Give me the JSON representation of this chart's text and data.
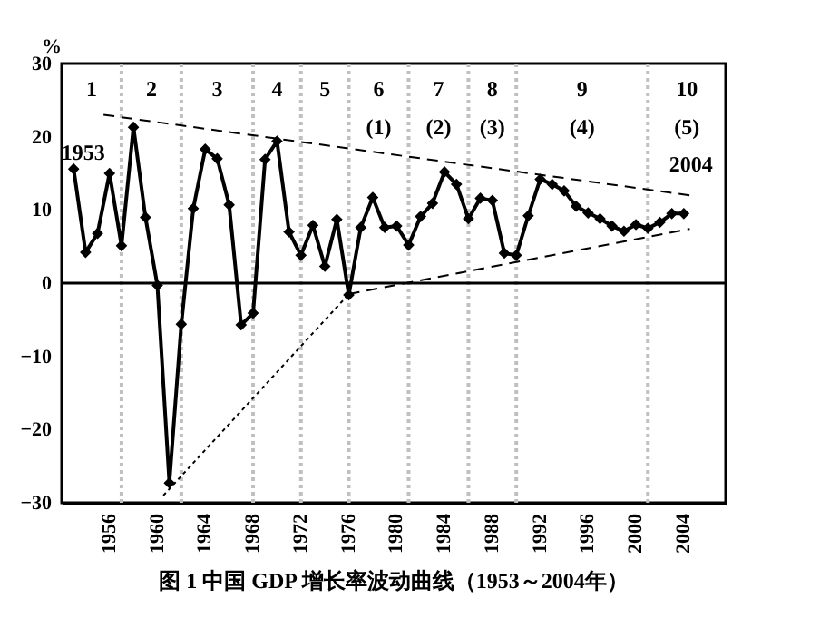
{
  "chart_data": {
    "type": "line",
    "title": "图 1   中国 GDP 增长率波动曲线（1953～2004年）",
    "ylabel": "%",
    "xlim": [
      1952,
      2007.5
    ],
    "xticks": [
      1956,
      1960,
      1964,
      1968,
      1972,
      1976,
      1980,
      1984,
      1988,
      1992,
      1996,
      2000,
      2004
    ],
    "ylim": [
      -30,
      30
    ],
    "yticks": [
      -30,
      -20,
      -10,
      0,
      10,
      20,
      30
    ],
    "grid": false,
    "series": [
      {
        "color": "#000000",
        "marker": "diamond",
        "line_style": "solid",
        "x": [
          1953,
          1954,
          1955,
          1956,
          1957,
          1958,
          1959,
          1960,
          1961,
          1962,
          1963,
          1964,
          1965,
          1966,
          1967,
          1968,
          1969,
          1970,
          1971,
          1972,
          1973,
          1974,
          1975,
          1976,
          1977,
          1978,
          1979,
          1980,
          1981,
          1982,
          1983,
          1984,
          1985,
          1986,
          1987,
          1988,
          1989,
          1990,
          1991,
          1992,
          1993,
          1994,
          1995,
          1996,
          1997,
          1998,
          1999,
          2000,
          2001,
          2002,
          2003,
          2004
        ],
        "values": [
          15.6,
          4.2,
          6.8,
          15.0,
          5.1,
          21.3,
          9.0,
          -0.3,
          -27.3,
          -5.6,
          10.2,
          18.3,
          17.0,
          10.7,
          -5.7,
          -4.1,
          16.9,
          19.4,
          7.0,
          3.8,
          7.9,
          2.3,
          8.7,
          -1.6,
          7.6,
          11.7,
          7.6,
          7.8,
          5.2,
          9.1,
          10.9,
          15.2,
          13.5,
          8.8,
          11.6,
          11.3,
          4.1,
          3.8,
          9.2,
          14.2,
          13.5,
          12.6,
          10.5,
          9.6,
          8.8,
          7.8,
          7.1,
          8.0,
          7.5,
          8.3,
          9.5,
          9.5
        ]
      },
      {
        "color": "#000000",
        "line_style": "dashed",
        "x": [
          1955.5,
          2004.5
        ],
        "values": [
          23,
          12
        ]
      },
      {
        "color": "#000000",
        "line_style": "dotted",
        "x": [
          1960.5,
          1976
        ],
        "values": [
          -29,
          -1.5
        ]
      },
      {
        "color": "#000000",
        "line_style": "dashed",
        "x": [
          1976,
          2004.5
        ],
        "values": [
          -1.5,
          7.4
        ]
      }
    ],
    "ref_lines": [
      {
        "axis": "y",
        "value": 0,
        "color": "#000000",
        "line_style": "solid"
      },
      {
        "axis": "x",
        "value": 1957,
        "color": "#c0c0c0",
        "line_style": "dotted"
      },
      {
        "axis": "x",
        "value": 1962,
        "color": "#c0c0c0",
        "line_style": "dotted"
      },
      {
        "axis": "x",
        "value": 1968,
        "color": "#c0c0c0",
        "line_style": "dotted"
      },
      {
        "axis": "x",
        "value": 1972,
        "color": "#c0c0c0",
        "line_style": "dotted"
      },
      {
        "axis": "x",
        "value": 1976,
        "color": "#c0c0c0",
        "line_style": "dotted"
      },
      {
        "axis": "x",
        "value": 1981,
        "color": "#c0c0c0",
        "line_style": "dotted"
      },
      {
        "axis": "x",
        "value": 1986,
        "color": "#c0c0c0",
        "line_style": "dotted"
      },
      {
        "axis": "x",
        "value": 1990,
        "color": "#c0c0c0",
        "line_style": "dotted"
      },
      {
        "axis": "x",
        "value": 2001,
        "color": "#c0c0c0",
        "line_style": "dotted"
      }
    ],
    "annotations": [
      "1953",
      "2004",
      "1",
      "2",
      "3",
      "4",
      "5",
      "6",
      "7",
      "8",
      "9",
      "10",
      "(1)",
      "(2)",
      "(3)",
      "(4)",
      "(5)"
    ]
  }
}
